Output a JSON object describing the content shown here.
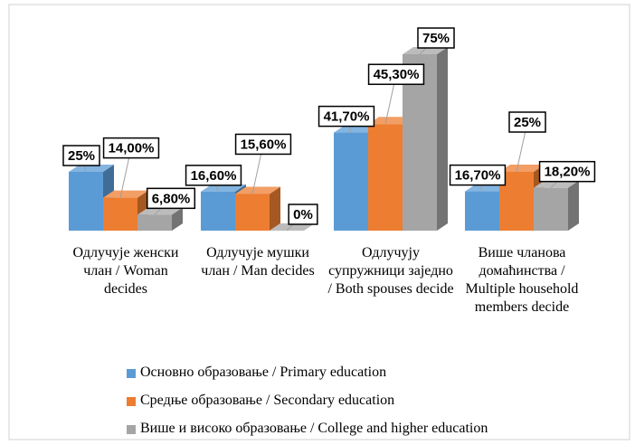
{
  "chart_data": {
    "type": "bar3d",
    "categories": [
      "Одлучује женски члан / Woman decides",
      "Одлучује мушки члан / Man decides",
      "Одлучују супружници заједно / Both spouses decide",
      "Више чланова домаћинства / Multiple household members decide"
    ],
    "series": [
      {
        "name": "Основно образовање / Primary education",
        "color": "#5b9bd5",
        "values": [
          25,
          16.6,
          41.7,
          16.7
        ],
        "value_labels": [
          "25%",
          "16,60%",
          "41,70%",
          "16,70%"
        ]
      },
      {
        "name": "Средње образовање / Secondary education",
        "color": "#ed7d31",
        "values": [
          14,
          15.6,
          45.3,
          25
        ],
        "value_labels": [
          "14,00%",
          "15,60%",
          "45,30%",
          "25%"
        ]
      },
      {
        "name": "Више и високо образовање / College and higher education",
        "color": "#a5a5a5",
        "values": [
          6.8,
          0,
          75,
          18.2
        ],
        "value_labels": [
          "6,80%",
          "0%",
          "75%",
          "18,20%"
        ]
      }
    ]
  }
}
